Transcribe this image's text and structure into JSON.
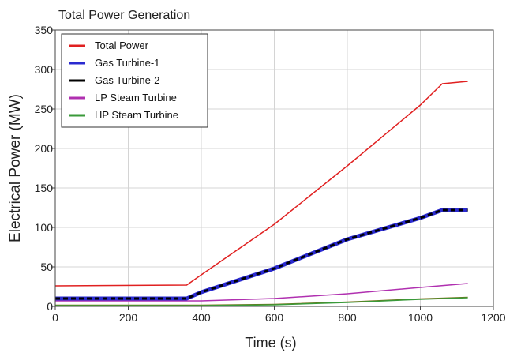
{
  "chart_data": {
    "type": "line",
    "title": "Total Power Generation",
    "xlabel": "Time (s)",
    "ylabel": "Electrical Power (MW)",
    "xlim": [
      0,
      1200
    ],
    "ylim": [
      0,
      350
    ],
    "xticks": [
      0,
      200,
      400,
      600,
      800,
      1000,
      1200
    ],
    "yticks": [
      0,
      50,
      100,
      150,
      200,
      250,
      300,
      350
    ],
    "grid": true,
    "legend_position": "top-left",
    "series": [
      {
        "name": "Total Power",
        "color": "#e02020",
        "style": "solid",
        "x": [
          0,
          360,
          400,
          600,
          800,
          1000,
          1060,
          1130
        ],
        "y": [
          26,
          27,
          40,
          104,
          178,
          255,
          282,
          285
        ]
      },
      {
        "name": "Gas Turbine-1",
        "color": "#2a2ad0",
        "style": "solid",
        "x": [
          0,
          360,
          400,
          600,
          800,
          1000,
          1060,
          1130
        ],
        "y": [
          10,
          10,
          18,
          48,
          85,
          112,
          122,
          122
        ]
      },
      {
        "name": "Gas Turbine-2",
        "color": "#000000",
        "style": "dashed",
        "x": [
          0,
          360,
          400,
          600,
          800,
          1000,
          1060,
          1130
        ],
        "y": [
          10,
          10,
          18,
          48,
          85,
          112,
          122,
          122
        ]
      },
      {
        "name": "LP Steam Turbine",
        "color": "#b030b0",
        "style": "solid",
        "x": [
          0,
          400,
          600,
          800,
          1000,
          1130
        ],
        "y": [
          7,
          7,
          10,
          16,
          24,
          29
        ]
      },
      {
        "name": "HP Steam Turbine",
        "color": "#3a9a3a",
        "style": "solid",
        "x": [
          0,
          400,
          600,
          800,
          1000,
          1130
        ],
        "y": [
          1,
          1,
          2,
          5,
          9,
          11
        ]
      },
      {
        "name": "",
        "color": "#7a6a10",
        "style": "solid",
        "x": [
          0,
          400,
          600,
          800,
          1000,
          1130
        ],
        "y": [
          1.5,
          1.5,
          2.5,
          5.5,
          9.5,
          11.5
        ]
      }
    ]
  }
}
